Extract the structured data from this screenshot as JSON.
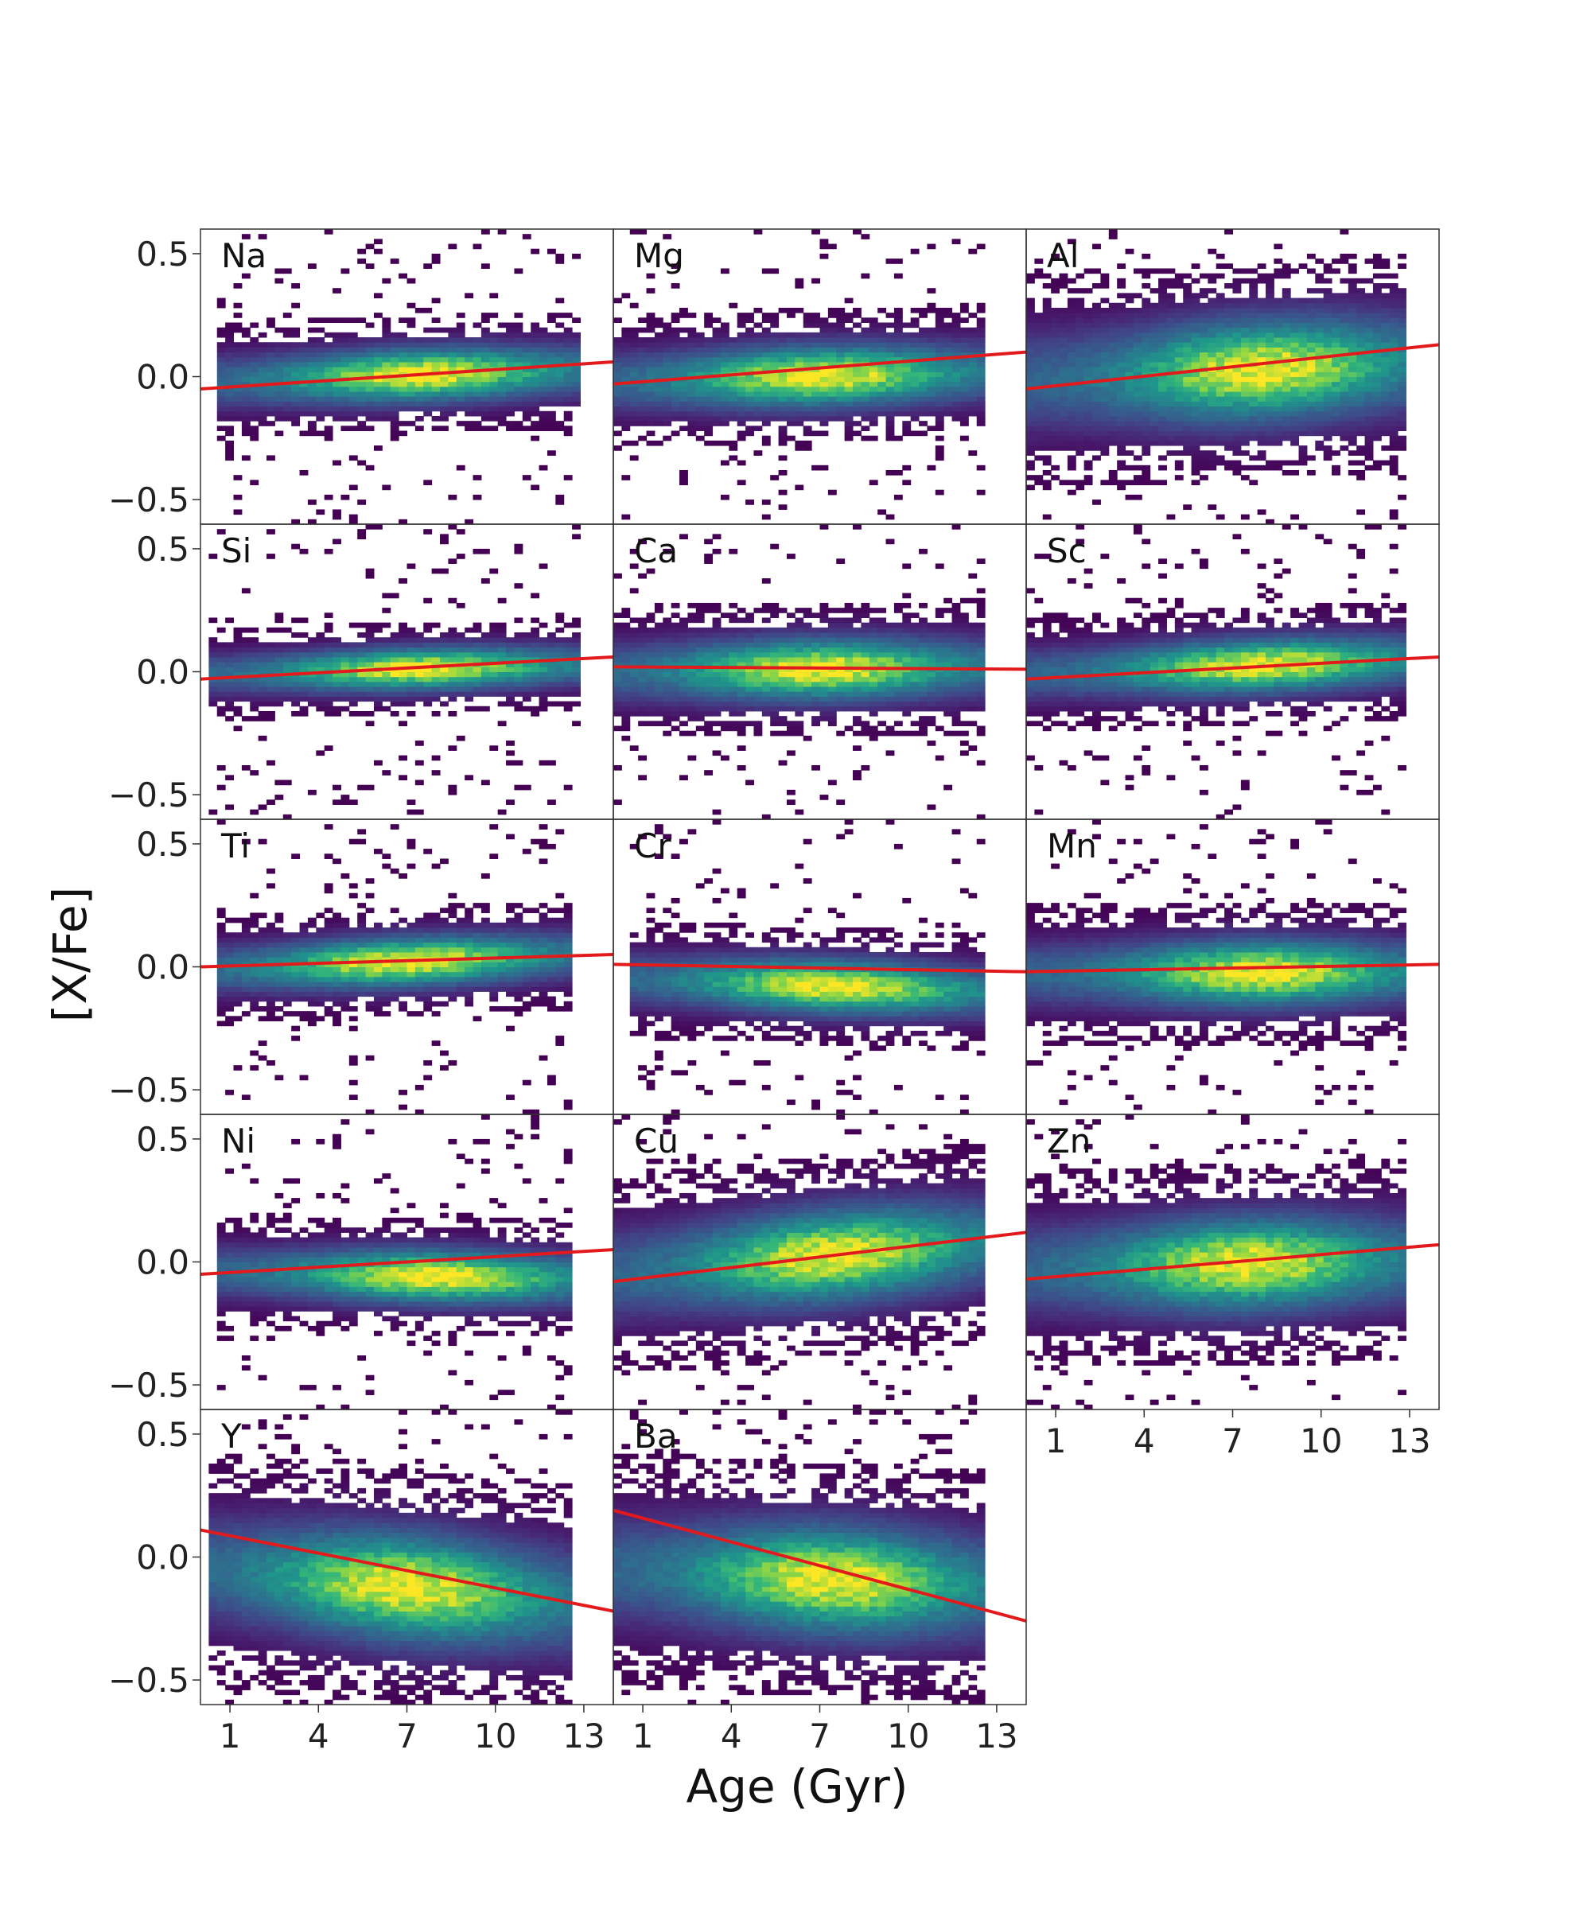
{
  "figure": {
    "xlabel": "Age (Gyr)",
    "ylabel": "[X/Fe]"
  },
  "chart_data": {
    "type": "heatmap",
    "layout": "5x3 panel grid, shared axes",
    "colormap": "viridis",
    "x_ticks": [
      1,
      4,
      7,
      10,
      13
    ],
    "y_ticks": [
      0.5,
      0.0,
      -0.5
    ],
    "y_tick_labels": [
      "0.5",
      "0.0",
      "−0.5"
    ],
    "xlim": [
      0,
      14
    ],
    "ylim": [
      -0.6,
      0.6
    ],
    "fit_color": "#e31a1c",
    "panels": [
      {
        "element": "Na",
        "fit": {
          "y_at_age_0": -0.05,
          "y_at_age_14": 0.06
        },
        "density": {
          "xmin": 0.5,
          "xmax": 13,
          "y_center_young": -0.02,
          "y_center_old": 0.03,
          "spread": 0.07,
          "peak_age": 7.5
        }
      },
      {
        "element": "Mg",
        "fit": {
          "y_at_age_0": -0.03,
          "y_at_age_14": 0.1
        },
        "density": {
          "xmin": 0,
          "xmax": 12.5,
          "y_center_young": -0.02,
          "y_center_old": 0.02,
          "spread": 0.08,
          "peak_age": 7
        }
      },
      {
        "element": "Al",
        "fit": {
          "y_at_age_0": -0.05,
          "y_at_age_14": 0.13
        },
        "density": {
          "xmin": 0,
          "xmax": 13,
          "y_center_young": -0.02,
          "y_center_old": 0.06,
          "spread": 0.13,
          "peak_age": 8
        }
      },
      {
        "element": "Si",
        "fit": {
          "y_at_age_0": -0.03,
          "y_at_age_14": 0.06
        },
        "density": {
          "xmin": 0.3,
          "xmax": 13,
          "y_center_young": -0.01,
          "y_center_old": 0.03,
          "spread": 0.055,
          "peak_age": 7.5
        }
      },
      {
        "element": "Ca",
        "fit": {
          "y_at_age_0": 0.02,
          "y_at_age_14": 0.01
        },
        "density": {
          "xmin": 0,
          "xmax": 12.5,
          "y_center_young": 0.0,
          "y_center_old": 0.02,
          "spread": 0.08,
          "peak_age": 7
        }
      },
      {
        "element": "Sc",
        "fit": {
          "y_at_age_0": -0.03,
          "y_at_age_14": 0.06
        },
        "density": {
          "xmin": 0,
          "xmax": 13,
          "y_center_young": -0.01,
          "y_center_old": 0.05,
          "spread": 0.07,
          "peak_age": 8
        }
      },
      {
        "element": "Ti",
        "fit": {
          "y_at_age_0": 0.0,
          "y_at_age_14": 0.05
        },
        "density": {
          "xmin": 0.5,
          "xmax": 12.5,
          "y_center_young": -0.01,
          "y_center_old": 0.05,
          "spread": 0.065,
          "peak_age": 7
        }
      },
      {
        "element": "Cr",
        "fit": {
          "y_at_age_0": 0.01,
          "y_at_age_14": -0.02
        },
        "density": {
          "xmin": 0.5,
          "xmax": 12.5,
          "y_center_young": -0.05,
          "y_center_old": -0.1,
          "spread": 0.07,
          "peak_age": 7.5
        }
      },
      {
        "element": "Mn",
        "fit": {
          "y_at_age_0": -0.02,
          "y_at_age_14": 0.01
        },
        "density": {
          "xmin": 0,
          "xmax": 13,
          "y_center_young": -0.03,
          "y_center_old": -0.02,
          "spread": 0.085,
          "peak_age": 8
        }
      },
      {
        "element": "Ni",
        "fit": {
          "y_at_age_0": -0.05,
          "y_at_age_14": 0.05
        },
        "density": {
          "xmin": 0.5,
          "xmax": 12.5,
          "y_center_young": -0.04,
          "y_center_old": -0.07,
          "spread": 0.07,
          "peak_age": 8
        }
      },
      {
        "element": "Cu",
        "fit": {
          "y_at_age_0": -0.08,
          "y_at_age_14": 0.12
        },
        "density": {
          "xmin": 0,
          "xmax": 12.5,
          "y_center_young": -0.05,
          "y_center_old": 0.08,
          "spread": 0.12,
          "peak_age": 7.5
        }
      },
      {
        "element": "Zn",
        "fit": {
          "y_at_age_0": -0.07,
          "y_at_age_14": 0.07
        },
        "density": {
          "xmin": 0,
          "xmax": 13,
          "y_center_young": -0.03,
          "y_center_old": 0.01,
          "spread": 0.12,
          "peak_age": 7.5
        }
      },
      {
        "element": "Y",
        "fit": {
          "y_at_age_0": 0.11,
          "y_at_age_14": -0.22
        },
        "density": {
          "xmin": 0.3,
          "xmax": 12.5,
          "y_center_young": -0.05,
          "y_center_old": -0.18,
          "spread": 0.14,
          "peak_age": 7
        }
      },
      {
        "element": "Ba",
        "fit": {
          "y_at_age_0": 0.19,
          "y_at_age_14": -0.26
        },
        "density": {
          "xmin": 0,
          "xmax": 12.5,
          "y_center_young": -0.05,
          "y_center_old": -0.12,
          "spread": 0.14,
          "peak_age": 7.5
        }
      }
    ]
  }
}
